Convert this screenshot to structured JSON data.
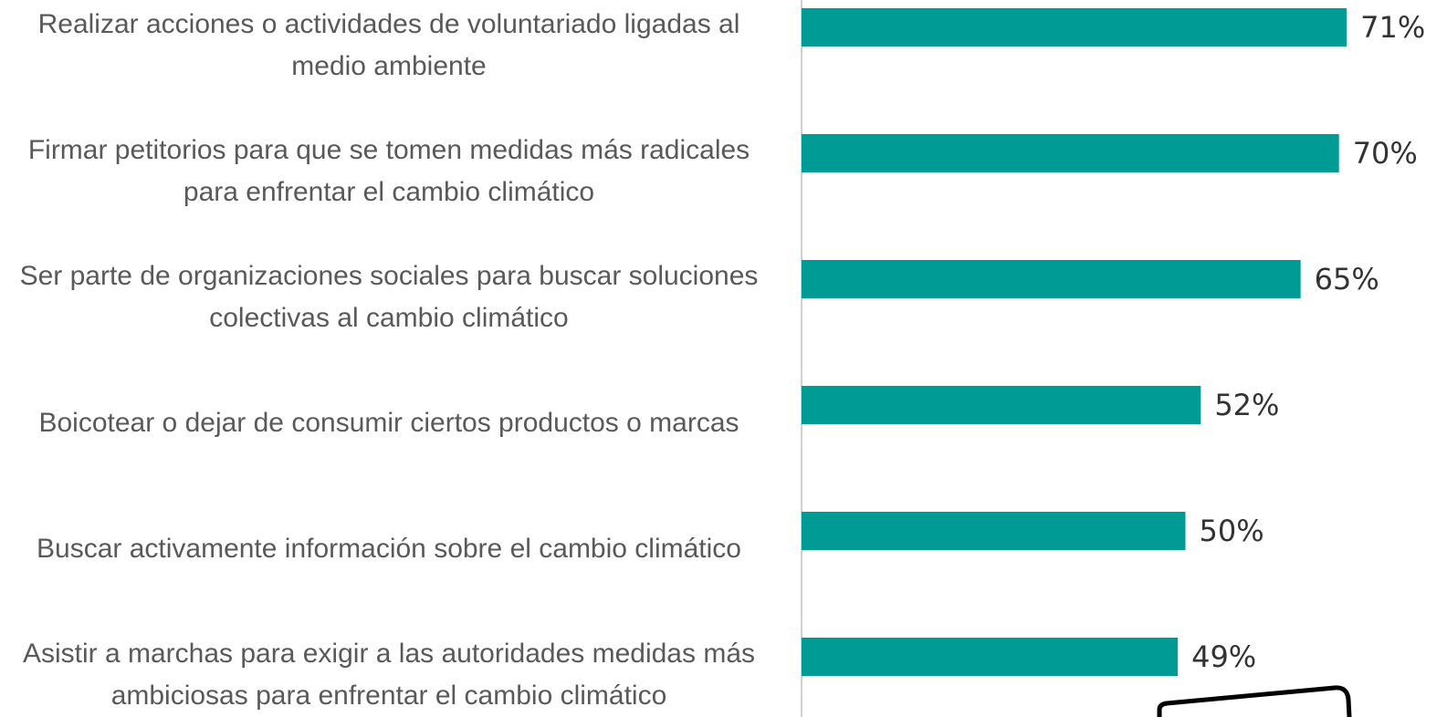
{
  "chart_data": {
    "type": "bar",
    "orientation": "horizontal",
    "categories": [
      "Realizar acciones o actividades de voluntariado ligadas al medio ambiente",
      "Firmar petitorios para que se tomen medidas más radicales para enfrentar el cambio climático",
      "Ser parte de organizaciones sociales para buscar soluciones colectivas al cambio climático",
      "Boicotear o dejar de consumir ciertos productos o marcas",
      "Buscar activamente información sobre el cambio climático",
      "Asistir a marchas para exigir a las autoridades medidas más ambiciosas para enfrentar el cambio climático"
    ],
    "values": [
      71,
      70,
      65,
      52,
      50,
      49
    ],
    "value_labels": [
      "71%",
      "70%",
      "65%",
      "52%",
      "50%",
      "49%"
    ],
    "color": "#009b94"
  }
}
